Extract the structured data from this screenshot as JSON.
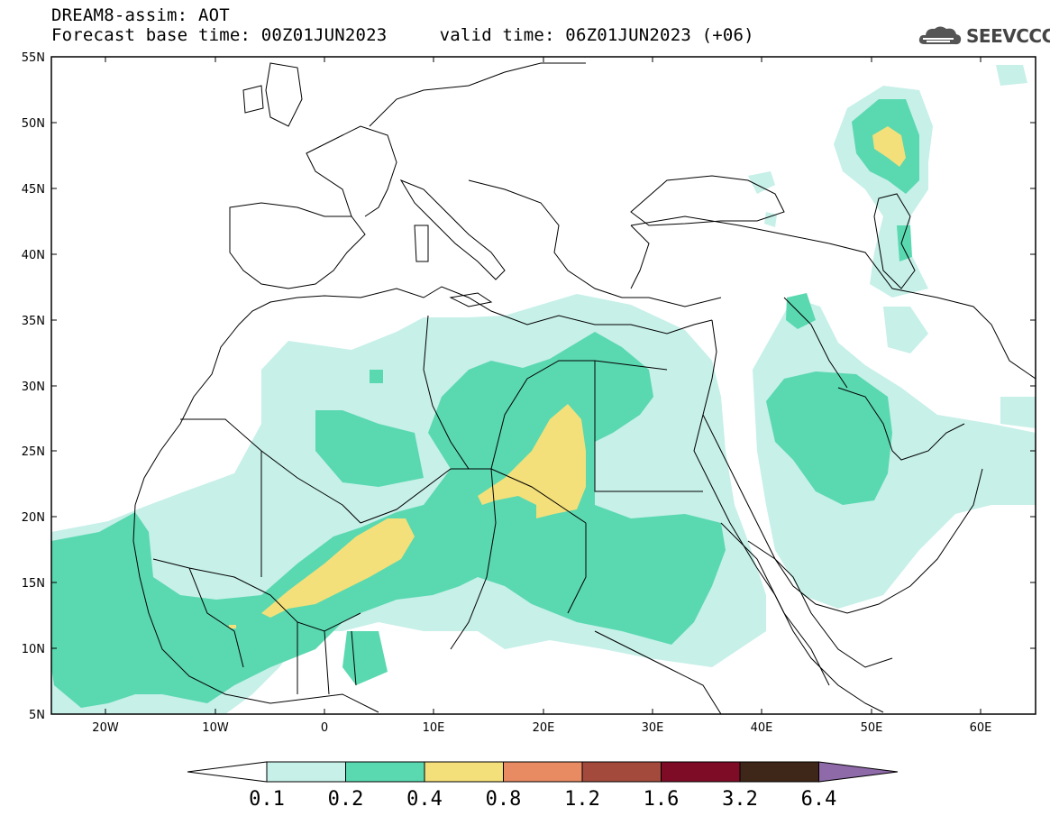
{
  "header": {
    "product_line": "DREAM8-assim: AOT",
    "time_line": "Forecast base time: 00Z01JUN2023     valid time: 06Z01JUN2023 (+06)"
  },
  "logo": {
    "text": "SEEVCCC",
    "icon": "cloud-logo-icon"
  },
  "map": {
    "lon_range": [
      -25,
      65
    ],
    "lat_range": [
      5,
      55
    ],
    "lat_ticks": [
      "55N",
      "50N",
      "45N",
      "40N",
      "35N",
      "30N",
      "25N",
      "20N",
      "15N",
      "10N",
      "5N"
    ],
    "lon_ticks": [
      "20W",
      "10W",
      "0",
      "10E",
      "20E",
      "30E",
      "40E",
      "50E",
      "60E"
    ],
    "field": "AOT"
  },
  "colorbar": {
    "labels": [
      "0.1",
      "0.2",
      "0.4",
      "0.8",
      "1.2",
      "1.6",
      "3.2",
      "6.4"
    ],
    "colors": [
      "#ffffff",
      "#c6f0e8",
      "#5ad8b0",
      "#f3e07a",
      "#e88a62",
      "#a44a3c",
      "#7e0c26",
      "#3e2618",
      "#8e6aa8"
    ]
  }
}
